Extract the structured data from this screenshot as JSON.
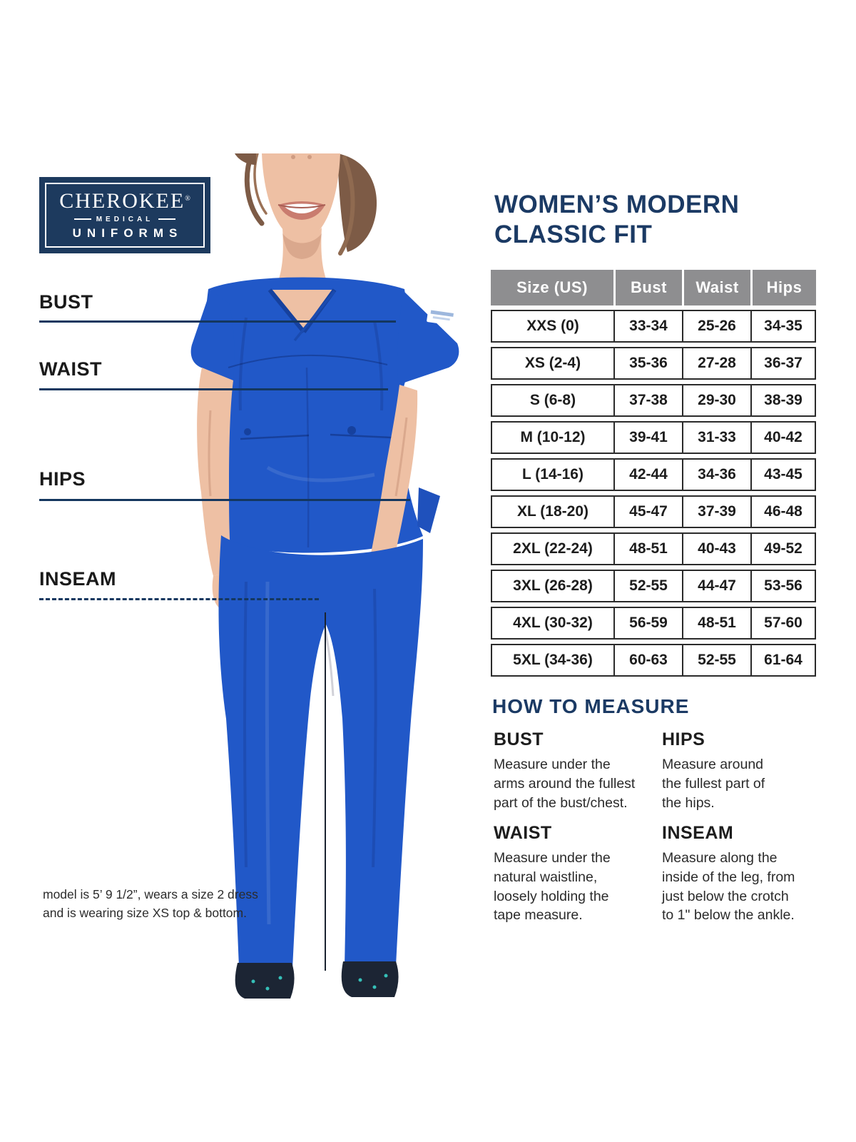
{
  "colors": {
    "brand_navy": "#1d3a5e",
    "title_navy": "#1b3a64",
    "annotation_navy": "#14375f",
    "table_header_gray": "#8e8e90",
    "table_line_dark": "#2b2b2b",
    "scrub_blue": "#2158c8",
    "scrub_blue_dark": "#16419e"
  },
  "logo": {
    "brand": "CHEROKEE",
    "reg": "®",
    "medical": "MEDICAL",
    "uniforms": "UNIFORMS"
  },
  "title": "WOMEN’S MODERN\nCLASSIC FIT",
  "annotations": {
    "bust": "BUST",
    "waist": "WAIST",
    "hips": "HIPS",
    "inseam": "INSEAM"
  },
  "size_table": {
    "headers": [
      "Size (US)",
      "Bust",
      "Waist",
      "Hips"
    ],
    "rows": [
      [
        "XXS (0)",
        "33-34",
        "25-26",
        "34-35"
      ],
      [
        "XS (2-4)",
        "35-36",
        "27-28",
        "36-37"
      ],
      [
        "S (6-8)",
        "37-38",
        "29-30",
        "38-39"
      ],
      [
        "M (10-12)",
        "39-41",
        "31-33",
        "40-42"
      ],
      [
        "L (14-16)",
        "42-44",
        "34-36",
        "43-45"
      ],
      [
        "XL (18-20)",
        "45-47",
        "37-39",
        "46-48"
      ],
      [
        "2XL (22-24)",
        "48-51",
        "40-43",
        "49-52"
      ],
      [
        "3XL (26-28)",
        "52-55",
        "44-47",
        "53-56"
      ],
      [
        "4XL (30-32)",
        "56-59",
        "48-51",
        "57-60"
      ],
      [
        "5XL (34-36)",
        "60-63",
        "52-55",
        "61-64"
      ]
    ]
  },
  "how_to": {
    "heading": "HOW TO MEASURE",
    "items": [
      {
        "title": "BUST",
        "text": "Measure under the\narms around the fullest\npart of the bust/chest."
      },
      {
        "title": "HIPS",
        "text": "Measure around\nthe fullest part of\nthe hips."
      },
      {
        "title": "WAIST",
        "text": "Measure under the\nnatural waistline,\nloosely holding the\ntape measure."
      },
      {
        "title": "INSEAM",
        "text": "Measure along the\ninside of the leg, from\njust below the crotch\nto 1\" below the ankle."
      }
    ]
  },
  "model_note": "model is 5’ 9 1/2”, wears a size 2 dress\nand is wearing size XS top & bottom."
}
